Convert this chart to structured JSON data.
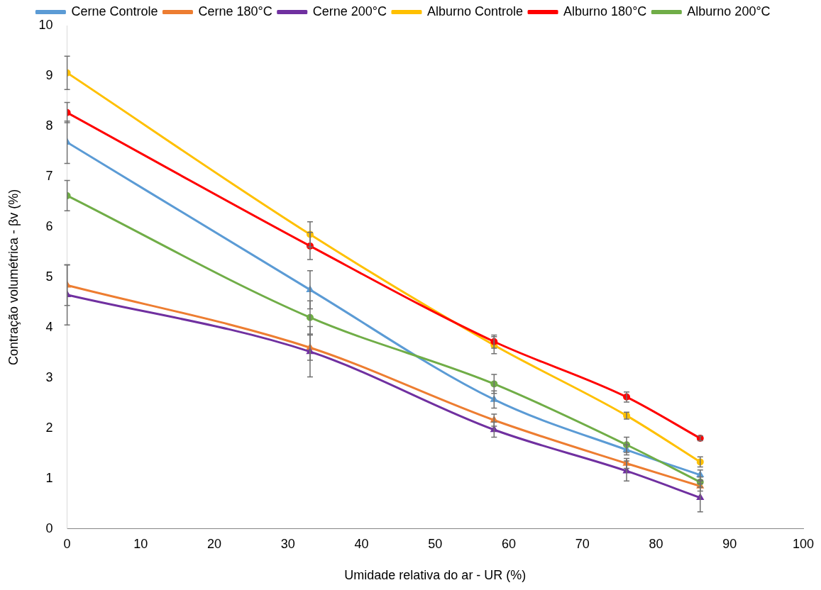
{
  "chart_data": {
    "type": "line",
    "xlabel": "Umidade relativa do ar - UR (%)",
    "ylabel": "Contração volumétrica - βv (%)",
    "x": [
      0,
      33,
      58,
      76,
      86
    ],
    "xlim": [
      0,
      100
    ],
    "xticks": [
      0,
      10,
      20,
      30,
      40,
      50,
      60,
      70,
      80,
      90,
      100
    ],
    "ylim": [
      0,
      10
    ],
    "yticks": [
      0,
      1,
      2,
      3,
      4,
      5,
      6,
      7,
      8,
      9,
      10
    ],
    "grid": false,
    "legend": "top",
    "series": [
      {
        "name": "Cerne Controle",
        "color": "#5b9bd5",
        "marker": "triangle",
        "values": [
          7.68,
          4.75,
          2.57,
          1.57,
          1.07
        ],
        "errors": [
          0.42,
          0.38,
          0.17,
          0.1,
          0.1
        ]
      },
      {
        "name": "Cerne 180°C",
        "color": "#ed7d31",
        "marker": "triangle",
        "values": [
          4.84,
          3.6,
          2.16,
          1.3,
          0.85
        ],
        "errors": [
          0.4,
          0.25,
          0.12,
          0.1,
          0.1
        ]
      },
      {
        "name": "Cerne 200°C",
        "color": "#7030a0",
        "marker": "triangle",
        "values": [
          4.65,
          3.52,
          1.97,
          1.15,
          0.62
        ],
        "errors": [
          0.6,
          0.5,
          0.15,
          0.2,
          0.28
        ]
      },
      {
        "name": "Alburno Controle",
        "color": "#ffc000",
        "marker": "circle",
        "values": [
          9.06,
          5.85,
          3.65,
          2.25,
          1.33
        ],
        "errors": [
          0.33,
          0.25,
          0.17,
          0.07,
          0.1
        ]
      },
      {
        "name": "Alburno 180°C",
        "color": "#ff0000",
        "marker": "circle",
        "values": [
          8.27,
          5.62,
          3.72,
          2.62,
          1.8
        ],
        "errors": [
          0.2,
          0.27,
          0.13,
          0.1,
          0.05
        ]
      },
      {
        "name": "Alburno 200°C",
        "color": "#70ad47",
        "marker": "circle",
        "values": [
          6.62,
          4.2,
          2.88,
          1.67,
          0.93
        ],
        "errors": [
          0.3,
          0.33,
          0.19,
          0.15,
          0.1
        ]
      }
    ]
  }
}
